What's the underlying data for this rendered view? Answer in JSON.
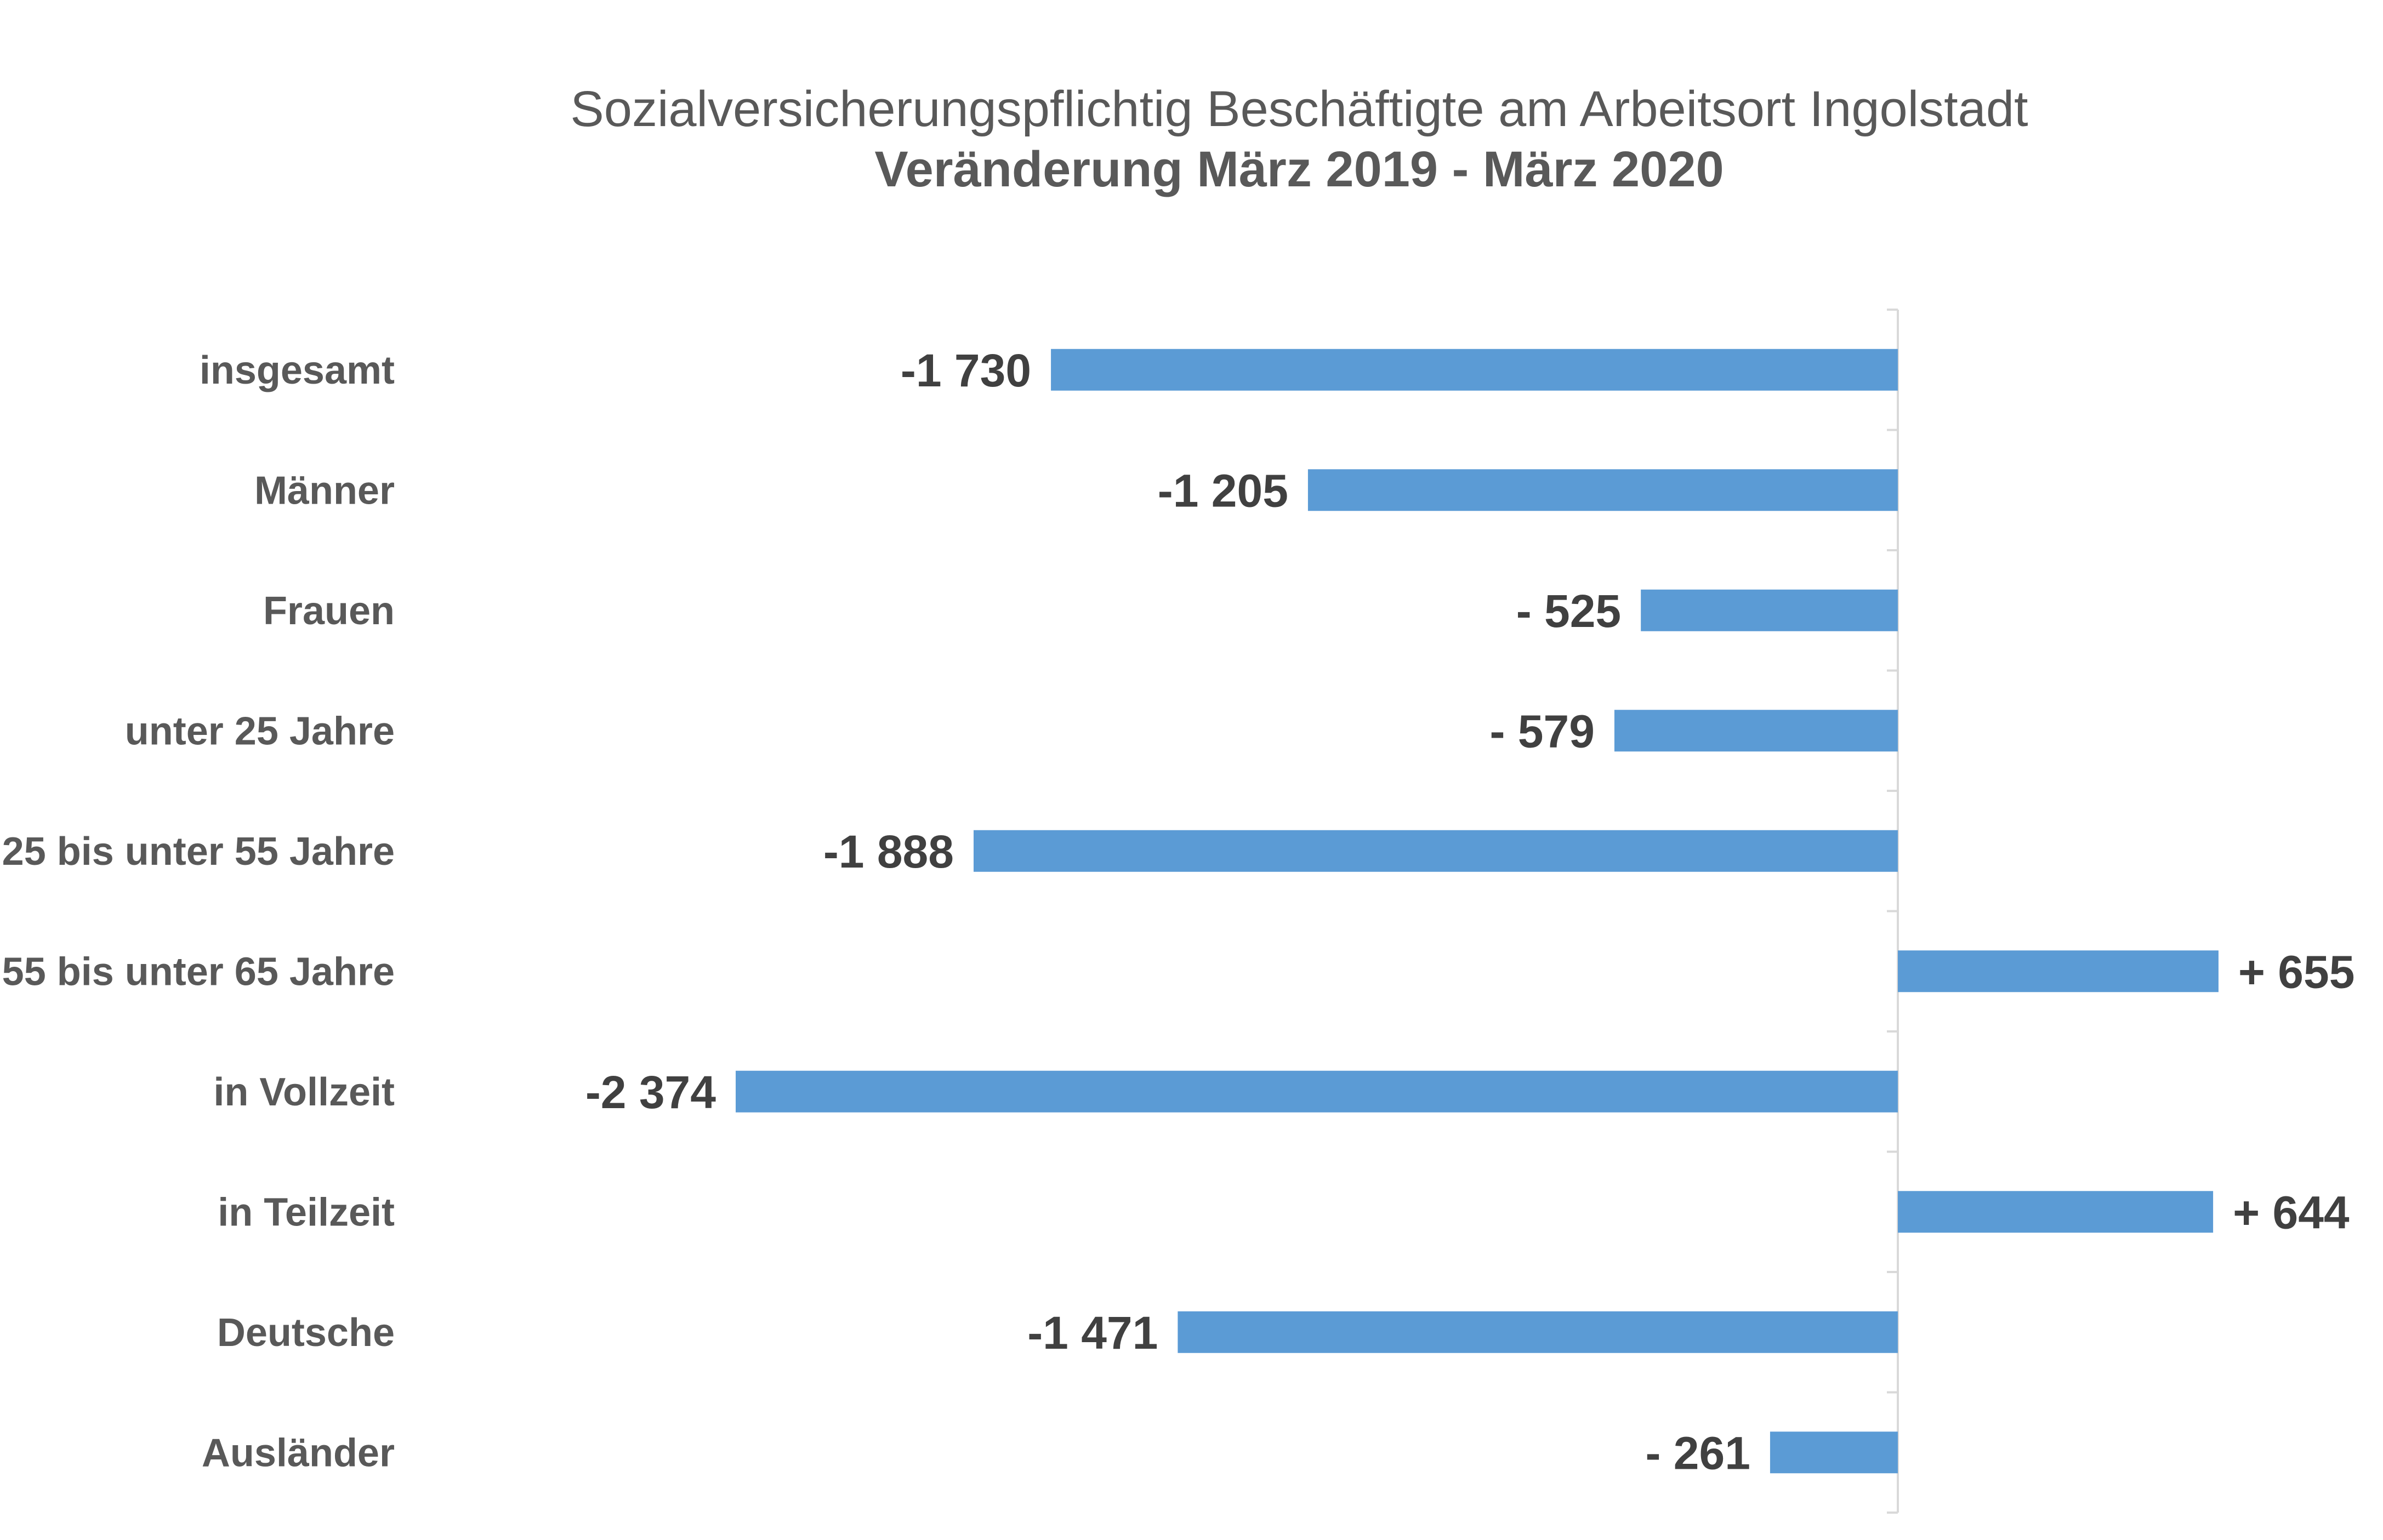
{
  "chart_data": {
    "type": "bar",
    "orientation": "horizontal",
    "title": "Sozialversicherungspflichtig Beschäftigte am Arbeitsort Ingolstadt",
    "subtitle": "Veränderung März 2019 - März 2020",
    "categories": [
      "insgesamt",
      "Männer",
      "Frauen",
      "unter 25 Jahre",
      "25 bis unter 55 Jahre",
      "55 bis unter 65 Jahre",
      "in Vollzeit",
      "in Teilzeit",
      "Deutsche",
      "Ausländer"
    ],
    "values": [
      -1730,
      -1205,
      -525,
      -579,
      -1888,
      655,
      -2374,
      644,
      -1471,
      -261
    ],
    "data_labels": [
      "-1 730",
      "-1 205",
      "- 525",
      "- 579",
      "-1 888",
      "+ 655",
      "-2 374",
      "+ 644",
      "-1 471",
      "- 261"
    ],
    "xlim": [
      -2374,
      0
    ],
    "grid": false,
    "legend": "none",
    "bar_color": "#5B9BD5"
  }
}
